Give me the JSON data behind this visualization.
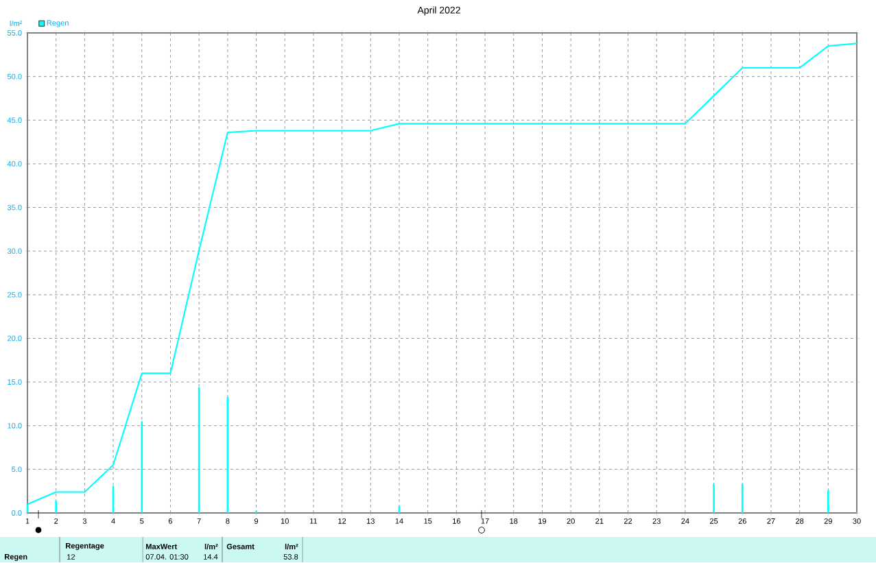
{
  "chart_data": {
    "type": "line",
    "title": "April 2022",
    "ylabel": "l/m²",
    "x": [
      1,
      2,
      3,
      4,
      5,
      6,
      7,
      8,
      9,
      10,
      11,
      12,
      13,
      14,
      15,
      16,
      17,
      18,
      19,
      20,
      21,
      22,
      23,
      24,
      25,
      26,
      27,
      28,
      29,
      30
    ],
    "series": [
      {
        "name": "Regen",
        "type": "bar",
        "color": "#00ffff",
        "x": [
          1,
          2,
          4,
          5,
          7,
          8,
          9,
          14,
          25,
          26,
          29,
          30
        ],
        "values": [
          1.0,
          1.4,
          3.1,
          10.5,
          14.4,
          13.3,
          0.2,
          0.8,
          3.3,
          3.3,
          2.6,
          0.1
        ]
      },
      {
        "color": "#00ffff",
        "values": [
          1.0,
          2.4,
          2.4,
          5.5,
          16.0,
          16.0,
          30.1,
          43.6,
          43.8,
          43.8,
          43.8,
          43.8,
          43.8,
          44.6,
          44.6,
          44.6,
          44.6,
          44.6,
          44.6,
          44.6,
          44.6,
          44.6,
          44.6,
          44.6,
          47.8,
          51.0,
          51.0,
          51.0,
          53.5,
          53.8
        ]
      }
    ],
    "xlim": [
      1,
      30
    ],
    "xticks": [
      1,
      2,
      3,
      4,
      5,
      6,
      7,
      8,
      9,
      10,
      11,
      12,
      13,
      14,
      15,
      16,
      17,
      18,
      19,
      20,
      21,
      22,
      23,
      24,
      25,
      26,
      27,
      28,
      29,
      30
    ],
    "ylim": [
      0,
      55
    ],
    "yticks": [
      {
        "value": 0,
        "label": "0.0"
      },
      {
        "value": 5,
        "label": "5.0"
      },
      {
        "value": 10,
        "label": "10.0"
      },
      {
        "value": 15,
        "label": "15.0"
      },
      {
        "value": 20,
        "label": "20.0"
      },
      {
        "value": 25,
        "label": "25.0"
      },
      {
        "value": 30,
        "label": "30.0"
      },
      {
        "value": 35,
        "label": "35.0"
      },
      {
        "value": 40,
        "label": "40.0"
      },
      {
        "value": 45,
        "label": "45.0"
      },
      {
        "value": 50,
        "label": "50.0"
      },
      {
        "value": 55,
        "label": "55.0"
      }
    ],
    "grid": true,
    "legend": "top left",
    "marker": "none",
    "line_style": "solid",
    "annotations": [
      "Regen",
      "Regentage",
      "12",
      "MaxWert",
      "07.04.  01:30",
      "l/m²",
      "14.4",
      "Gesamt",
      "l/m²",
      "53.8"
    ]
  }
}
